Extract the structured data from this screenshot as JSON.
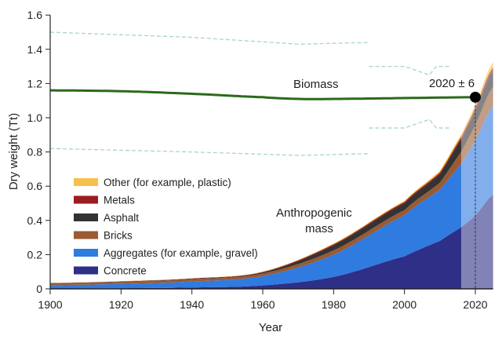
{
  "chart_data": {
    "type": "area",
    "title": "",
    "xlabel": "Year",
    "ylabel": "Dry weight (Tt)",
    "xlim": [
      1900,
      2025
    ],
    "ylim": [
      0,
      1.6
    ],
    "xticks": [
      1900,
      1920,
      1940,
      1960,
      1980,
      2000,
      2020
    ],
    "yticks": [
      0,
      0.2,
      0.4,
      0.6,
      0.8,
      1.0,
      1.2,
      1.4,
      1.6
    ],
    "ytick_labels": [
      "0",
      "0.2",
      "0.4",
      "0.6",
      "0.8",
      "1.0",
      "1.2",
      "1.4",
      "1.6"
    ],
    "grid": false,
    "legend_placement": "lower-left",
    "x": [
      1900,
      1920,
      1940,
      1960,
      1980,
      2000,
      2010,
      2016,
      2020,
      2025
    ],
    "series": [
      {
        "name": "Concrete",
        "color": "#2e2f86",
        "values": [
          0.002,
          0.004,
          0.008,
          0.02,
          0.07,
          0.19,
          0.28,
          0.36,
          0.43,
          0.55
        ]
      },
      {
        "name": "Aggregates (for example, gravel)",
        "color": "#2f7be0",
        "values": [
          0.02,
          0.025,
          0.035,
          0.055,
          0.13,
          0.24,
          0.3,
          0.37,
          0.44,
          0.52
        ]
      },
      {
        "name": "Bricks",
        "color": "#9a5a33",
        "values": [
          0.01,
          0.012,
          0.013,
          0.015,
          0.025,
          0.03,
          0.04,
          0.07,
          0.09,
          0.11
        ]
      },
      {
        "name": "Asphalt",
        "color": "#333333",
        "values": [
          0.001,
          0.002,
          0.003,
          0.006,
          0.03,
          0.04,
          0.05,
          0.07,
          0.08,
          0.09
        ]
      },
      {
        "name": "Metals",
        "color": "#9b1c20",
        "values": [
          0.001,
          0.001,
          0.002,
          0.003,
          0.006,
          0.008,
          0.01,
          0.015,
          0.02,
          0.025
        ]
      },
      {
        "name": "Other (for example, plastic)",
        "color": "#f7c04a",
        "values": [
          0.001,
          0.001,
          0.001,
          0.002,
          0.004,
          0.006,
          0.01,
          0.015,
          0.02,
          0.03
        ]
      }
    ],
    "legend_order": [
      "Other (for example, plastic)",
      "Metals",
      "Asphalt",
      "Bricks",
      "Aggregates (for example, gravel)",
      "Concrete"
    ],
    "projection_start": 2016,
    "biomass": {
      "label": "Biomass",
      "color": "#2a6a1c",
      "x": [
        1900,
        1920,
        1940,
        1960,
        1970,
        1980,
        2000,
        2020
      ],
      "y": [
        1.16,
        1.155,
        1.14,
        1.12,
        1.11,
        1.11,
        1.115,
        1.12
      ]
    },
    "biomass_uncertainty": {
      "color": "#a8d4cc",
      "upper_early": {
        "x": [
          1900,
          1940,
          1970,
          1990
        ],
        "y": [
          1.5,
          1.47,
          1.43,
          1.44
        ]
      },
      "lower_early": {
        "x": [
          1900,
          1940,
          1970,
          1990
        ],
        "y": [
          0.82,
          0.8,
          0.78,
          0.79
        ]
      },
      "upper_late": {
        "x": [
          1990,
          2000,
          2007,
          2009,
          2013
        ],
        "y": [
          1.3,
          1.3,
          1.25,
          1.3,
          1.3
        ]
      },
      "lower_late": {
        "x": [
          1990,
          2000,
          2007,
          2009,
          2013
        ],
        "y": [
          0.94,
          0.94,
          0.99,
          0.94,
          0.94
        ]
      }
    },
    "crossover": {
      "x": 2020,
      "y": 1.12,
      "label": "2020 ± 6"
    },
    "annotations": [
      "Anthropogenic",
      "mass"
    ]
  }
}
